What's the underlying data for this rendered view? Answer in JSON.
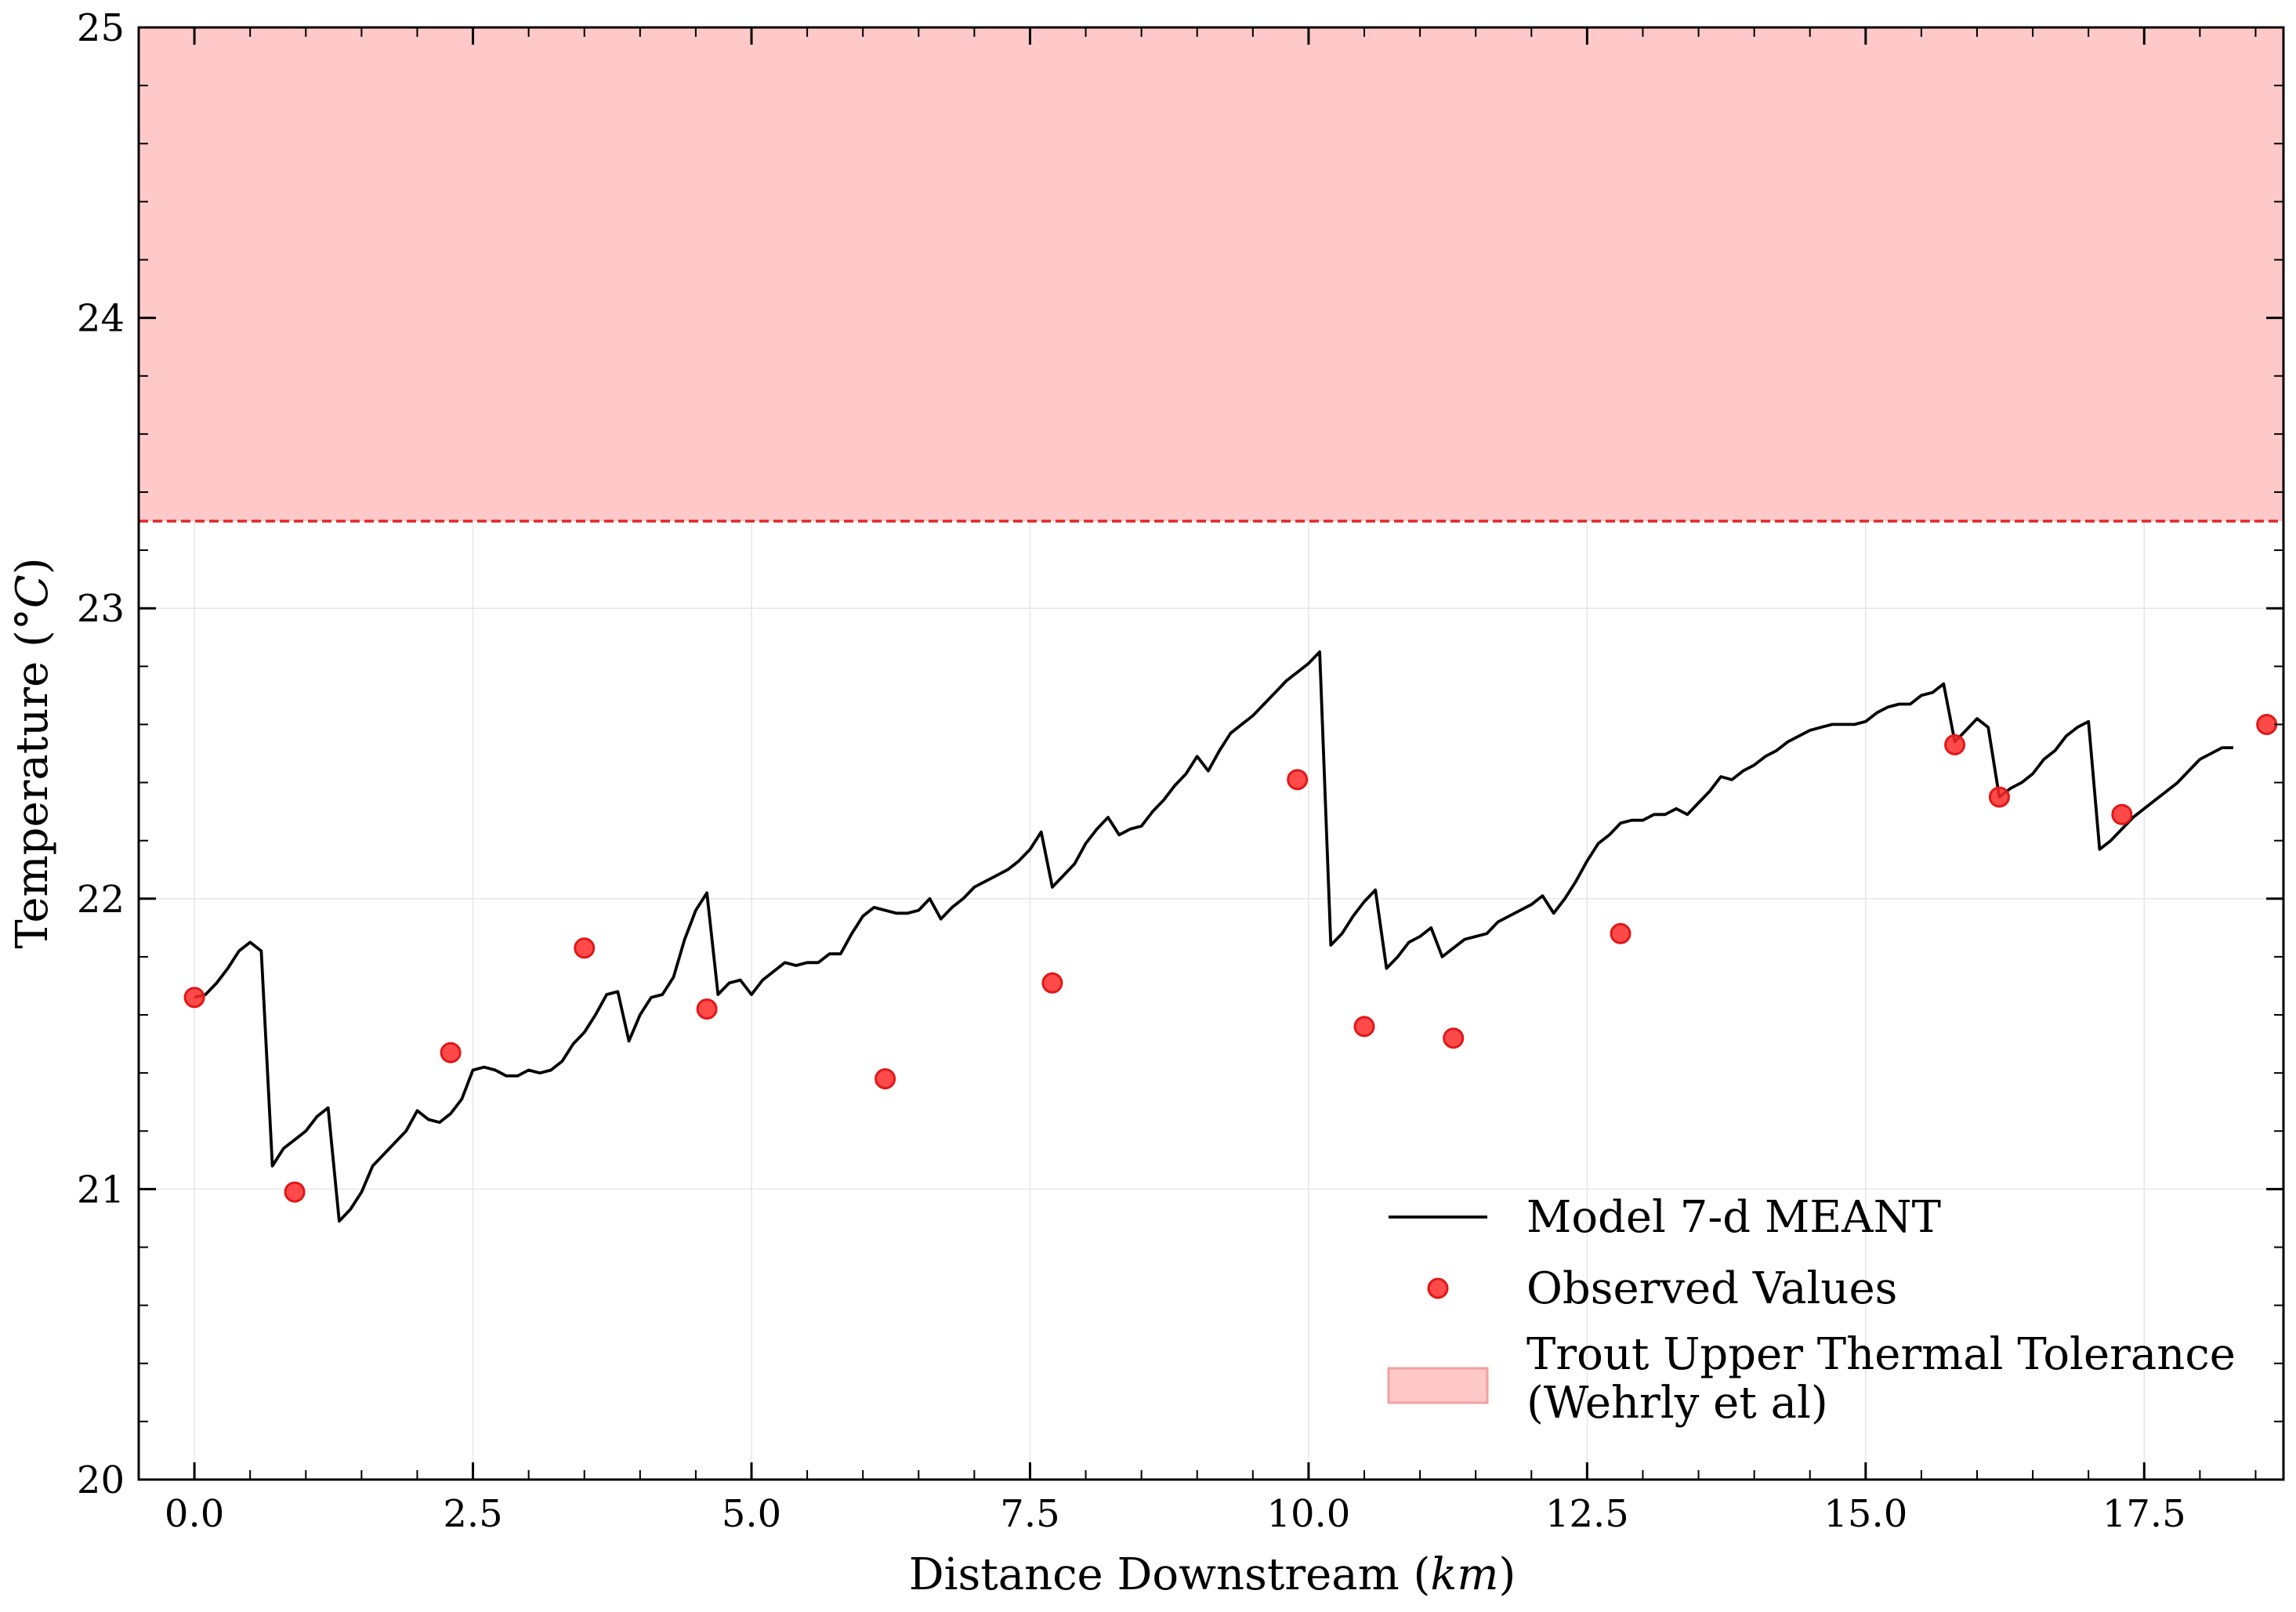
{
  "chart_data": {
    "type": "line",
    "xlabel": "Distance Downstream (km)",
    "xlabel_main": "Distance Downstream",
    "xlabel_unit": "km",
    "ylabel": "Temperature (°C)",
    "ylabel_main": "Temperature",
    "ylabel_unit": "°C",
    "xlim": [
      -0.5,
      18.75
    ],
    "ylim": [
      20,
      25
    ],
    "xticks": [
      0.0,
      2.5,
      5.0,
      7.5,
      10.0,
      12.5,
      15.0,
      17.5
    ],
    "xtick_labels": [
      "0.0",
      "2.5",
      "5.0",
      "7.5",
      "10.0",
      "12.5",
      "15.0",
      "17.5"
    ],
    "yticks": [
      20,
      21,
      22,
      23,
      24,
      25
    ],
    "ytick_labels": [
      "20",
      "21",
      "22",
      "23",
      "24",
      "25"
    ],
    "grid": true,
    "legend_position": "lower-right",
    "threshold": {
      "name": "Trout Upper Thermal Tolerance (Wehrly et al)",
      "label_line1": "Trout Upper Thermal Tolerance",
      "label_line2": "(Wehrly et al)",
      "value": 23.3,
      "band_top": 25
    },
    "series": [
      {
        "name": "Model 7-d MEANT",
        "kind": "line",
        "color": "#000000",
        "x": [
          0.0,
          0.1,
          0.2,
          0.3,
          0.4,
          0.5,
          0.6,
          0.7,
          0.8,
          0.9,
          1.0,
          1.1,
          1.2,
          1.3,
          1.4,
          1.5,
          1.6,
          1.7,
          1.8,
          1.9,
          2.0,
          2.1,
          2.2,
          2.3,
          2.4,
          2.5,
          2.6,
          2.7,
          2.8,
          2.9,
          3.0,
          3.1,
          3.2,
          3.3,
          3.4,
          3.5,
          3.6,
          3.7,
          3.8,
          3.9,
          4.0,
          4.1,
          4.2,
          4.3,
          4.4,
          4.5,
          4.6,
          4.7,
          4.8,
          4.9,
          5.0,
          5.1,
          5.2,
          5.3,
          5.4,
          5.5,
          5.6,
          5.7,
          5.8,
          5.9,
          6.0,
          6.1,
          6.2,
          6.3,
          6.4,
          6.5,
          6.6,
          6.7,
          6.8,
          6.9,
          7.0,
          7.1,
          7.2,
          7.3,
          7.4,
          7.5,
          7.6,
          7.7,
          7.8,
          7.9,
          8.0,
          8.1,
          8.2,
          8.3,
          8.4,
          8.5,
          8.6,
          8.7,
          8.8,
          8.9,
          9.0,
          9.1,
          9.2,
          9.3,
          9.4,
          9.5,
          9.6,
          9.7,
          9.8,
          9.9,
          10.0,
          10.1,
          10.2,
          10.3,
          10.4,
          10.5,
          10.6,
          10.7,
          10.8,
          10.9,
          11.0,
          11.1,
          11.2,
          11.3,
          11.4,
          11.5,
          11.6,
          11.7,
          11.8,
          11.9,
          12.0,
          12.1,
          12.2,
          12.3,
          12.4,
          12.5,
          12.6,
          12.7,
          12.8,
          12.9,
          13.0,
          13.1,
          13.2,
          13.3,
          13.4,
          13.5,
          13.6,
          13.7,
          13.8,
          13.9,
          14.0,
          14.1,
          14.2,
          14.3,
          14.4,
          14.5,
          14.6,
          14.7,
          14.8,
          14.9,
          15.0,
          15.1,
          15.2,
          15.3,
          15.4,
          15.5,
          15.6,
          15.7,
          15.8,
          15.9,
          16.0,
          16.1,
          16.2,
          16.3,
          16.4,
          16.5,
          16.6,
          16.7,
          16.8,
          16.9,
          17.0,
          17.1,
          17.2,
          17.3,
          17.4,
          17.5,
          17.6,
          17.7,
          17.8,
          17.9,
          18.0,
          18.1,
          18.2,
          18.3
        ],
        "y": [
          21.66,
          21.67,
          21.71,
          21.76,
          21.82,
          21.85,
          21.82,
          21.08,
          21.14,
          21.17,
          21.2,
          21.25,
          21.28,
          20.89,
          20.93,
          20.99,
          21.08,
          21.12,
          21.16,
          21.2,
          21.27,
          21.24,
          21.23,
          21.26,
          21.31,
          21.41,
          21.42,
          21.41,
          21.39,
          21.39,
          21.41,
          21.4,
          21.41,
          21.44,
          21.5,
          21.54,
          21.6,
          21.67,
          21.68,
          21.51,
          21.6,
          21.66,
          21.67,
          21.73,
          21.86,
          21.96,
          22.02,
          21.67,
          21.71,
          21.72,
          21.67,
          21.72,
          21.75,
          21.78,
          21.77,
          21.78,
          21.78,
          21.81,
          21.81,
          21.88,
          21.94,
          21.97,
          21.96,
          21.95,
          21.95,
          21.96,
          22.0,
          21.93,
          21.97,
          22.0,
          22.04,
          22.06,
          22.08,
          22.1,
          22.13,
          22.17,
          22.23,
          22.04,
          22.08,
          22.12,
          22.19,
          22.24,
          22.28,
          22.22,
          22.24,
          22.25,
          22.3,
          22.34,
          22.39,
          22.43,
          22.49,
          22.44,
          22.51,
          22.57,
          22.6,
          22.63,
          22.67,
          22.71,
          22.75,
          22.78,
          22.81,
          22.85,
          21.84,
          21.88,
          21.94,
          21.99,
          22.03,
          21.76,
          21.8,
          21.85,
          21.87,
          21.9,
          21.8,
          21.83,
          21.86,
          21.87,
          21.88,
          21.92,
          21.94,
          21.96,
          21.98,
          22.01,
          21.95,
          22.0,
          22.06,
          22.13,
          22.19,
          22.22,
          22.26,
          22.27,
          22.27,
          22.29,
          22.29,
          22.31,
          22.29,
          22.33,
          22.37,
          22.42,
          22.41,
          22.44,
          22.46,
          22.49,
          22.51,
          22.54,
          22.56,
          22.58,
          22.59,
          22.6,
          22.6,
          22.6,
          22.61,
          22.64,
          22.66,
          22.67,
          22.67,
          22.7,
          22.71,
          22.74,
          22.54,
          22.58,
          22.62,
          22.59,
          22.35,
          22.38,
          22.4,
          22.43,
          22.48,
          22.51,
          22.56,
          22.59,
          22.61,
          22.17,
          22.2,
          22.24,
          22.28,
          22.31,
          22.34,
          22.37,
          22.4,
          22.44,
          22.48,
          22.5,
          22.52,
          22.52
        ]
      },
      {
        "name": "Observed Values",
        "kind": "scatter",
        "color": "#ff2a2a",
        "x": [
          0.0,
          0.9,
          2.3,
          3.5,
          4.6,
          6.2,
          7.7,
          9.9,
          10.5,
          11.3,
          12.8,
          15.8,
          16.2,
          17.3,
          18.6
        ],
        "y": [
          21.66,
          20.99,
          21.47,
          21.83,
          21.62,
          21.38,
          21.71,
          22.41,
          21.56,
          21.52,
          21.88,
          22.53,
          22.35,
          22.29,
          22.6
        ]
      }
    ]
  }
}
